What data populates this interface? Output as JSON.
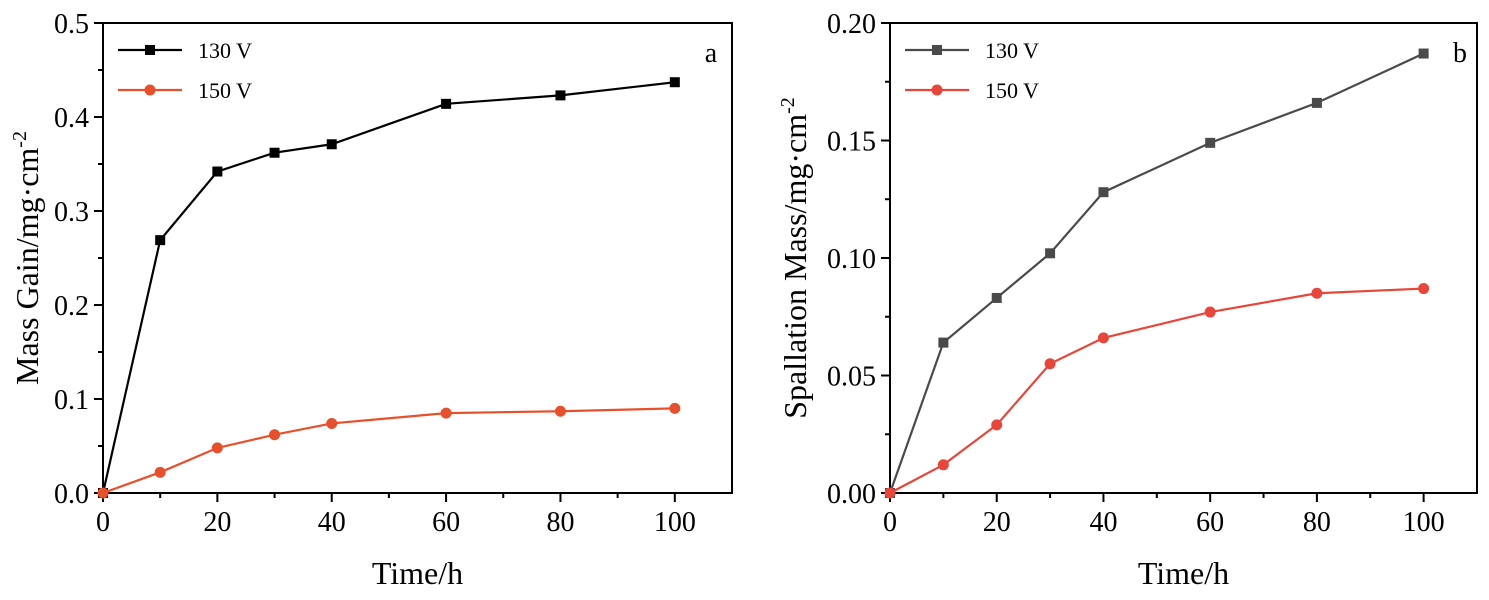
{
  "chart_data": [
    {
      "type": "line",
      "panel_label": "a",
      "xlabel": "Time/h",
      "ylabel": {
        "main": "Mass Gain/mg·cm",
        "sup": "-2"
      },
      "xlim": [
        0,
        110
      ],
      "ylim": [
        0,
        0.5
      ],
      "xticks": [
        0,
        20,
        40,
        60,
        80,
        100
      ],
      "yticks": [
        0.0,
        0.1,
        0.2,
        0.3,
        0.4,
        0.5
      ],
      "ytick_labels": [
        "0.0",
        "0.1",
        "0.2",
        "0.3",
        "0.4",
        "0.5"
      ],
      "legend_position": "top-left",
      "series": [
        {
          "name": "130 V",
          "marker": "square",
          "color": "#000000",
          "x": [
            0,
            10,
            20,
            30,
            40,
            60,
            80,
            100
          ],
          "y": [
            0.0,
            0.269,
            0.342,
            0.362,
            0.371,
            0.414,
            0.423,
            0.437
          ]
        },
        {
          "name": "150 V",
          "marker": "circle",
          "color": "#e8502c",
          "x": [
            0,
            10,
            20,
            30,
            40,
            60,
            80,
            100
          ],
          "y": [
            0.0,
            0.022,
            0.048,
            0.062,
            0.074,
            0.085,
            0.087,
            0.09
          ]
        }
      ]
    },
    {
      "type": "line",
      "panel_label": "b",
      "xlabel": "Time/h",
      "ylabel": {
        "main": "Spallation Mass/mg·cm",
        "sup": "-2"
      },
      "xlim": [
        0,
        110
      ],
      "ylim": [
        0,
        0.2
      ],
      "xticks": [
        0,
        20,
        40,
        60,
        80,
        100
      ],
      "yticks": [
        0.0,
        0.05,
        0.1,
        0.15,
        0.2
      ],
      "ytick_labels": [
        "0.00",
        "0.05",
        "0.10",
        "0.15",
        "0.20"
      ],
      "legend_position": "top-left",
      "series": [
        {
          "name": "130 V",
          "marker": "square",
          "color": "#4a4a4a",
          "x": [
            0,
            10,
            20,
            30,
            40,
            60,
            80,
            100
          ],
          "y": [
            0.0,
            0.064,
            0.083,
            0.102,
            0.128,
            0.149,
            0.166,
            0.187
          ]
        },
        {
          "name": "150 V",
          "marker": "circle",
          "color": "#e8463a",
          "x": [
            0,
            10,
            20,
            30,
            40,
            60,
            80,
            100
          ],
          "y": [
            0.0,
            0.012,
            0.029,
            0.055,
            0.066,
            0.077,
            0.085,
            0.087
          ]
        }
      ]
    }
  ]
}
